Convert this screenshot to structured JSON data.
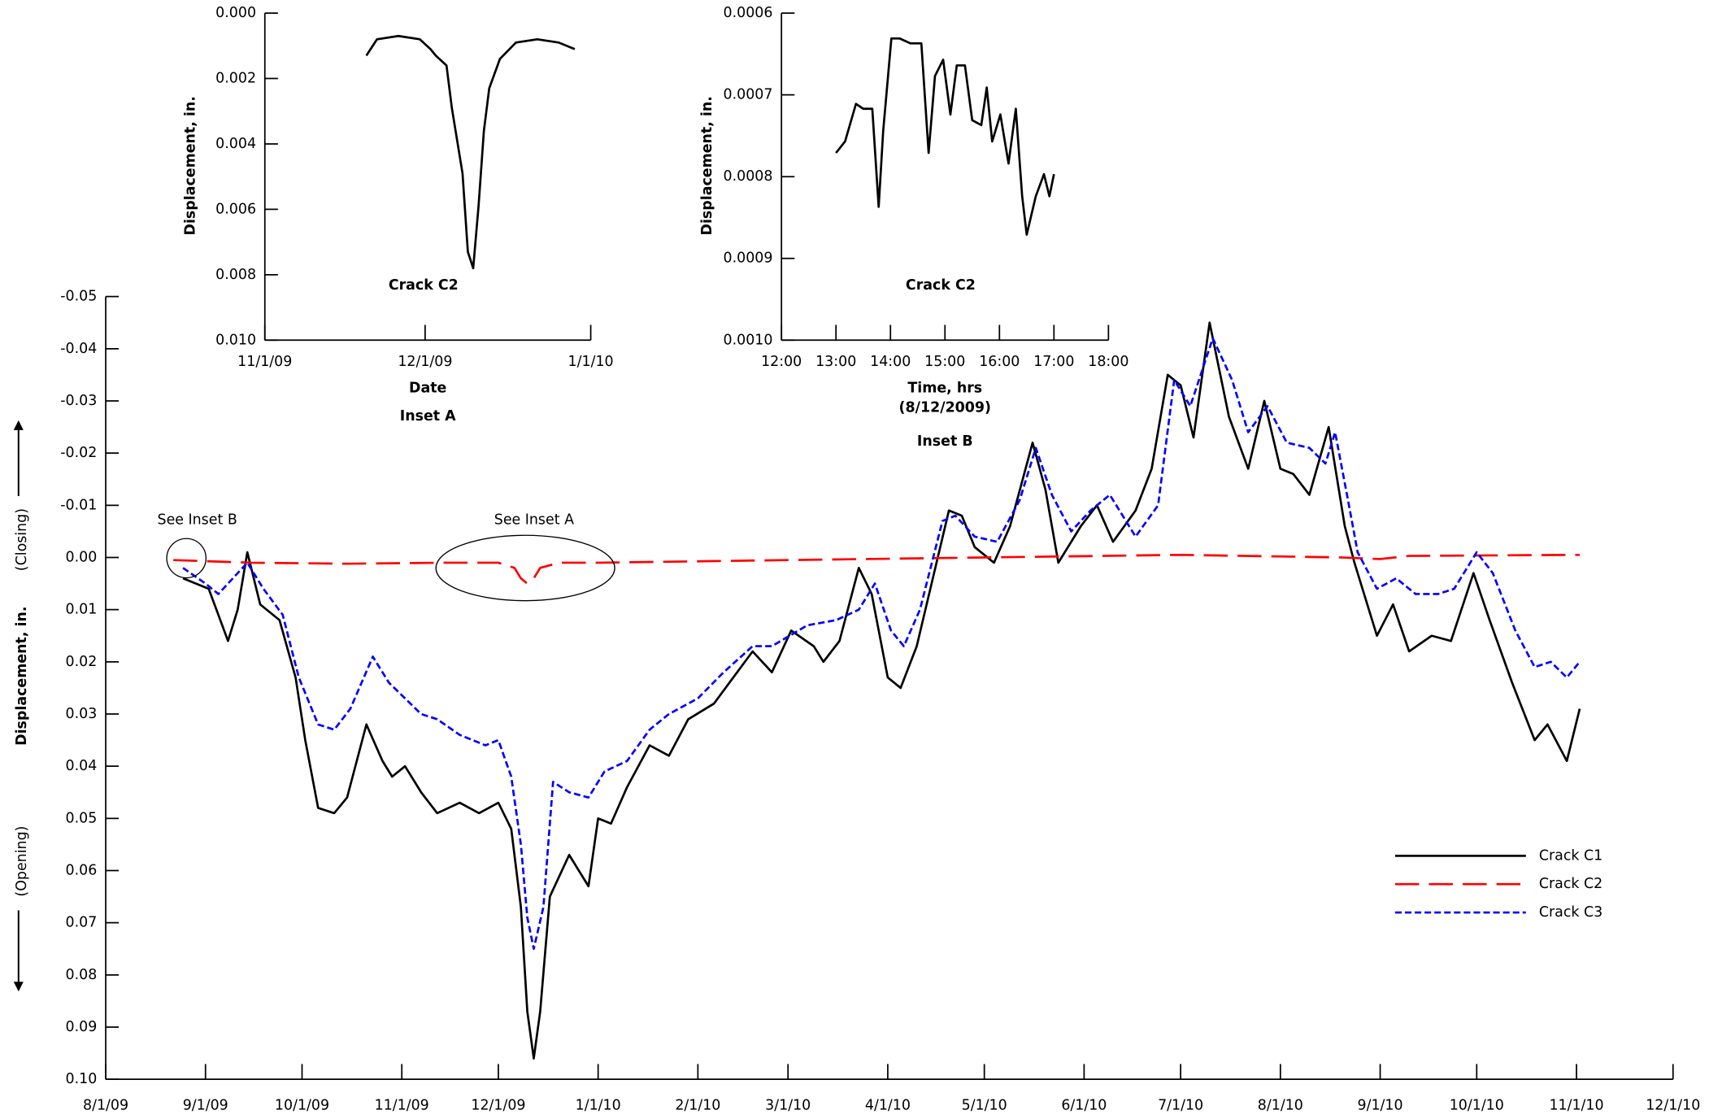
{
  "chart_data": [
    {
      "type": "line",
      "y_label": "Displacement, in.",
      "y_direction_labels": {
        "up": "(Closing)",
        "down": "(Opening)"
      },
      "annotations": [
        "See Inset B",
        "See Inset A"
      ],
      "xlim": [
        "2009-08-01",
        "2010-12-01"
      ],
      "xticks": [
        {
          "value": "2009-08-01",
          "label": "8/1/09"
        },
        {
          "value": "2009-09-01",
          "label": "9/1/09"
        },
        {
          "value": "2009-10-01",
          "label": "10/1/09"
        },
        {
          "value": "2009-11-01",
          "label": "11/1/09"
        },
        {
          "value": "2009-12-01",
          "label": "12/1/09"
        },
        {
          "value": "2010-01-01",
          "label": "1/1/10"
        },
        {
          "value": "2010-02-01",
          "label": "2/1/10"
        },
        {
          "value": "2010-03-01",
          "label": "3/1/10"
        },
        {
          "value": "2010-04-01",
          "label": "4/1/10"
        },
        {
          "value": "2010-05-01",
          "label": "5/1/10"
        },
        {
          "value": "2010-06-01",
          "label": "6/1/10"
        },
        {
          "value": "2010-07-01",
          "label": "7/1/10"
        },
        {
          "value": "2010-08-01",
          "label": "8/1/10"
        },
        {
          "value": "2010-09-01",
          "label": "9/1/10"
        },
        {
          "value": "2010-10-01",
          "label": "10/1/10"
        },
        {
          "value": "2010-11-01",
          "label": "11/1/10"
        },
        {
          "value": "2010-12-01",
          "label": "12/1/10"
        }
      ],
      "ylim": [
        -0.05,
        0.1
      ],
      "y_inverted": true,
      "yticks": [
        -0.05,
        -0.04,
        -0.03,
        -0.02,
        -0.01,
        {
          "value": 0,
          "label": "0.00"
        },
        0.01,
        0.02,
        0.03,
        0.04,
        0.05,
        0.06,
        0.07,
        0.08,
        0.09,
        {
          "value": 0.1,
          "label": "0.10"
        }
      ],
      "legend": "lower right",
      "series": [
        {
          "name": "Crack C1",
          "color": "#000000",
          "line_style": "solid",
          "x": [
            "2009-08-25",
            "2009-09-02",
            "2009-09-08",
            "2009-09-11",
            "2009-09-14",
            "2009-09-18",
            "2009-09-24",
            "2009-09-29",
            "2009-10-02",
            "2009-10-06",
            "2009-10-11",
            "2009-10-15",
            "2009-10-21",
            "2009-10-26",
            "2009-10-29",
            "2009-11-02",
            "2009-11-07",
            "2009-11-12",
            "2009-11-19",
            "2009-11-25",
            "2009-12-01",
            "2009-12-05",
            "2009-12-08",
            "2009-12-10",
            "2009-12-12",
            "2009-12-14",
            "2009-12-17",
            "2009-12-23",
            "2009-12-29",
            "2010-01-01",
            "2010-01-05",
            "2010-01-10",
            "2010-01-17",
            "2010-01-23",
            "2010-01-29",
            "2010-02-06",
            "2010-02-12",
            "2010-02-18",
            "2010-02-24",
            "2010-03-02",
            "2010-03-09",
            "2010-03-12",
            "2010-03-17",
            "2010-03-23",
            "2010-03-27",
            "2010-04-01",
            "2010-04-05",
            "2010-04-10",
            "2010-04-15",
            "2010-04-20",
            "2010-04-24",
            "2010-04-28",
            "2010-05-04",
            "2010-05-09",
            "2010-05-16",
            "2010-05-20",
            "2010-05-24",
            "2010-05-31",
            "2010-06-05",
            "2010-06-10",
            "2010-06-17",
            "2010-06-22",
            "2010-06-27",
            "2010-07-01",
            "2010-07-05",
            "2010-07-10",
            "2010-07-16",
            "2010-07-22",
            "2010-07-27",
            "2010-08-01",
            "2010-08-05",
            "2010-08-10",
            "2010-08-16",
            "2010-08-21",
            "2010-08-24",
            "2010-08-31",
            "2010-09-05",
            "2010-09-10",
            "2010-09-17",
            "2010-09-23",
            "2010-09-30",
            "2010-10-05",
            "2010-10-12",
            "2010-10-19",
            "2010-10-23",
            "2010-10-29",
            "2010-11-02"
          ],
          "values": [
            0.004,
            0.006,
            0.016,
            0.01,
            -0.001,
            0.009,
            0.012,
            0.023,
            0.035,
            0.048,
            0.049,
            0.046,
            0.032,
            0.039,
            0.042,
            0.04,
            0.045,
            0.049,
            0.047,
            0.049,
            0.047,
            0.052,
            0.067,
            0.087,
            0.096,
            0.087,
            0.065,
            0.057,
            0.063,
            0.05,
            0.051,
            0.044,
            0.036,
            0.038,
            0.031,
            0.028,
            0.023,
            0.018,
            0.022,
            0.014,
            0.017,
            0.02,
            0.016,
            0.002,
            0.007,
            0.023,
            0.025,
            0.017,
            0.004,
            -0.009,
            -0.008,
            -0.002,
            0.001,
            -0.006,
            -0.022,
            -0.013,
            0.001,
            -0.006,
            -0.01,
            -0.003,
            -0.009,
            -0.017,
            -0.035,
            -0.033,
            -0.023,
            -0.045,
            -0.027,
            -0.017,
            -0.03,
            -0.017,
            -0.016,
            -0.012,
            -0.025,
            -0.006,
            0.001,
            0.015,
            0.009,
            0.018,
            0.015,
            0.016,
            0.003,
            0.012,
            0.024,
            0.035,
            0.032,
            0.039,
            0.029
          ]
        },
        {
          "name": "Crack C2",
          "color": "#ff0000",
          "line_style": "long-dash",
          "x": [
            "2009-08-22",
            "2009-09-15",
            "2009-10-15",
            "2009-11-15",
            "2009-12-01",
            "2009-12-06",
            "2009-12-08",
            "2009-12-10",
            "2009-12-12",
            "2009-12-14",
            "2009-12-20",
            "2010-01-01",
            "2010-03-01",
            "2010-05-01",
            "2010-07-01",
            "2010-08-20",
            "2010-09-01",
            "2010-09-10",
            "2010-11-02"
          ],
          "values": [
            0.0005,
            0.001,
            0.0012,
            0.001,
            0.001,
            0.002,
            0.004,
            0.005,
            0.004,
            0.002,
            0.001,
            0.001,
            0.0005,
            0,
            -0.0005,
            0,
            0.0003,
            -0.0003,
            -0.0005
          ]
        },
        {
          "name": "Crack C3",
          "color": "#0000ff",
          "line_style": "dash",
          "x": [
            "2009-08-25",
            "2009-09-01",
            "2009-09-05",
            "2009-09-14",
            "2009-09-19",
            "2009-09-25",
            "2009-09-30",
            "2009-10-06",
            "2009-10-11",
            "2009-10-16",
            "2009-10-23",
            "2009-10-28",
            "2009-11-02",
            "2009-11-07",
            "2009-11-12",
            "2009-11-19",
            "2009-11-27",
            "2009-12-01",
            "2009-12-05",
            "2009-12-08",
            "2009-12-10",
            "2009-12-12",
            "2009-12-15",
            "2009-12-18",
            "2009-12-23",
            "2009-12-29",
            "2010-01-03",
            "2010-01-10",
            "2010-01-17",
            "2010-01-23",
            "2010-02-01",
            "2010-02-09",
            "2010-02-18",
            "2010-02-24",
            "2010-03-07",
            "2010-03-16",
            "2010-03-23",
            "2010-03-28",
            "2010-04-02",
            "2010-04-06",
            "2010-04-11",
            "2010-04-18",
            "2010-04-22",
            "2010-04-28",
            "2010-05-05",
            "2010-05-12",
            "2010-05-17",
            "2010-05-22",
            "2010-05-28",
            "2010-06-03",
            "2010-06-09",
            "2010-06-17",
            "2010-06-24",
            "2010-06-29",
            "2010-07-04",
            "2010-07-11",
            "2010-07-17",
            "2010-07-22",
            "2010-07-28",
            "2010-08-03",
            "2010-08-10",
            "2010-08-15",
            "2010-08-18",
            "2010-08-22",
            "2010-08-25",
            "2010-08-31",
            "2010-09-06",
            "2010-09-12",
            "2010-09-19",
            "2010-09-24",
            "2010-10-01",
            "2010-10-06",
            "2010-10-13",
            "2010-10-19",
            "2010-10-24",
            "2010-10-29",
            "2010-11-02"
          ],
          "values": [
            0.002,
            0.005,
            0.007,
            0.001,
            0.006,
            0.011,
            0.023,
            0.032,
            0.033,
            0.029,
            0.019,
            0.024,
            0.027,
            0.03,
            0.031,
            0.034,
            0.036,
            0.035,
            0.042,
            0.055,
            0.069,
            0.075,
            0.067,
            0.043,
            0.045,
            0.046,
            0.041,
            0.039,
            0.033,
            0.03,
            0.027,
            0.022,
            0.017,
            0.017,
            0.013,
            0.012,
            0.01,
            0.005,
            0.014,
            0.017,
            0.01,
            -0.007,
            -0.008,
            -0.004,
            -0.003,
            -0.011,
            -0.021,
            -0.012,
            -0.005,
            -0.009,
            -0.012,
            -0.004,
            -0.01,
            -0.034,
            -0.029,
            -0.042,
            -0.034,
            -0.024,
            -0.029,
            -0.022,
            -0.021,
            -0.018,
            -0.024,
            -0.011,
            -0.001,
            0.006,
            0.004,
            0.007,
            0.007,
            0.006,
            -0.001,
            0.003,
            0.014,
            0.021,
            0.02,
            0.023,
            0.02
          ]
        }
      ]
    },
    {
      "type": "line",
      "y_label": "Displacement, in.",
      "x_label": "Date",
      "annotation": "Crack C2",
      "caption": "Inset A",
      "xlim": [
        "2009-11-01",
        "2010-01-01"
      ],
      "xticks": [
        {
          "value": "2009-11-01",
          "label": "11/1/09"
        },
        {
          "value": "2009-12-01",
          "label": "12/1/09"
        },
        {
          "value": "2010-01-01",
          "label": "1/1/10"
        }
      ],
      "ylim": [
        0,
        0.01
      ],
      "y_inverted": true,
      "yticks": [
        {
          "value": 0,
          "label": "0.000"
        },
        0.002,
        0.004,
        0.006,
        0.008,
        {
          "value": 0.01,
          "label": "0.010"
        }
      ],
      "series": [
        {
          "name": "Crack C2",
          "color": "#000000",
          "line_style": "solid",
          "x": [
            "2009-11-20",
            "2009-11-22",
            "2009-11-26",
            "2009-11-30",
            "2009-12-02",
            "2009-12-03",
            "2009-12-05",
            "2009-12-06",
            "2009-12-07",
            "2009-12-08",
            "2009-12-09",
            "2009-12-10",
            "2009-12-11",
            "2009-12-12",
            "2009-12-13",
            "2009-12-15",
            "2009-12-18",
            "2009-12-22",
            "2009-12-26",
            "2009-12-29"
          ],
          "values": [
            0.0013,
            0.0008,
            0.0007,
            0.0008,
            0.0011,
            0.0013,
            0.0016,
            0.0029,
            0.0039,
            0.0049,
            0.0073,
            0.0078,
            0.0059,
            0.0036,
            0.0023,
            0.0014,
            0.0009,
            0.0008,
            0.0009,
            0.0011
          ]
        }
      ]
    },
    {
      "type": "line",
      "y_label": "Displacement, in.",
      "x_label": "Time, hrs",
      "x_sublabel": "(8/12/2009)",
      "annotation": "Crack C2",
      "caption": "Inset B",
      "xlim": [
        "12:00",
        "18:00"
      ],
      "xticks": [
        "12:00",
        "13:00",
        "14:00",
        "15:00",
        "16:00",
        "17:00",
        "18:00"
      ],
      "ylim": [
        0.0006,
        0.001
      ],
      "y_inverted": true,
      "yticks": [
        0.0006,
        0.0007,
        0.0008,
        0.0009,
        {
          "value": 0.001,
          "label": "0.0010"
        }
      ],
      "series": [
        {
          "name": "Crack C2",
          "color": "#000000",
          "line_style": "solid",
          "x": [
            "13:00",
            "13:10",
            "13:22",
            "13:30",
            "13:40",
            "13:47",
            "13:52",
            "14:01",
            "14:10",
            "14:22",
            "14:34",
            "14:42",
            "14:49",
            "14:58",
            "15:06",
            "15:13",
            "15:22",
            "15:30",
            "15:40",
            "15:46",
            "15:52",
            "16:01",
            "16:10",
            "16:18",
            "16:25",
            "16:30",
            "16:40",
            "16:49",
            "16:55",
            "17:00"
          ],
          "values": [
            0.000771,
            0.000757,
            0.000711,
            0.000717,
            0.000717,
            0.000837,
            0.000744,
            0.000631,
            0.000631,
            0.000637,
            0.000637,
            0.000771,
            0.000677,
            0.000657,
            0.000724,
            0.000664,
            0.000664,
            0.000731,
            0.000737,
            0.000691,
            0.000757,
            0.000724,
            0.000784,
            0.000717,
            0.000824,
            0.000871,
            0.000824,
            0.000797,
            0.000824,
            0.000797
          ]
        }
      ]
    }
  ]
}
